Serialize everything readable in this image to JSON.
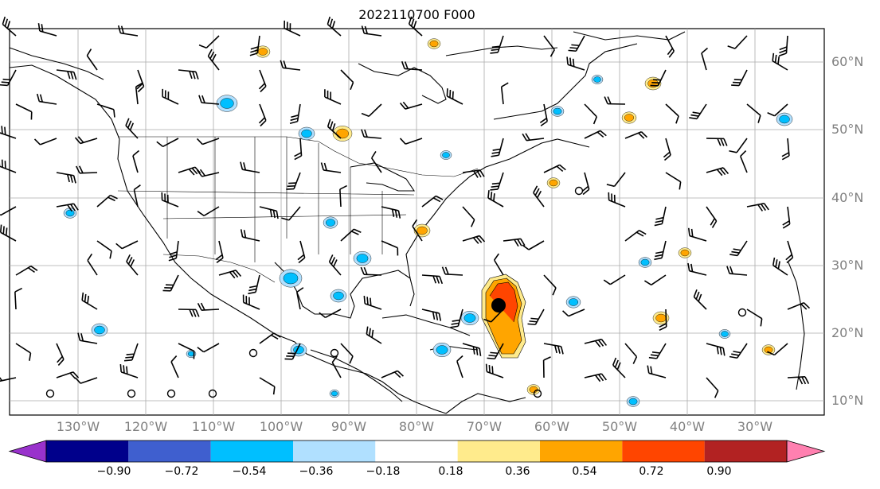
{
  "title": "2022110700 F000",
  "lat_labels": [
    "60°N",
    "50°N",
    "40°N",
    "30°N",
    "20°N",
    "10°N"
  ],
  "lon_labels": [
    "130°W",
    "120°W",
    "110°W",
    "100°W",
    "90°W",
    "80°W",
    "70°W",
    "60°W",
    "50°W",
    "40°W",
    "30°W"
  ],
  "colorbar": {
    "ticks": [
      "−0.90",
      "−0.72",
      "−0.54",
      "−0.36",
      "−0.18",
      "0.18",
      "0.36",
      "0.54",
      "0.72",
      "0.90"
    ],
    "colors": [
      "#9932cc",
      "#00008b",
      "#3f5fcf",
      "#00bfff",
      "#b0e0ff",
      "#ffffff",
      "#ffeb8c",
      "#ffa500",
      "#ff4500",
      "#b22222",
      "#ff80b0"
    ]
  },
  "colors": {
    "neg_light": "#b0e0ff",
    "neg_mid": "#00bfff",
    "pos_light": "#ffeb8c",
    "pos_mid": "#ffa500",
    "pos_strong": "#ff4500",
    "grid": "#aaaaaa",
    "land_outline": "#000000"
  },
  "storm_marker": "black-dot"
}
